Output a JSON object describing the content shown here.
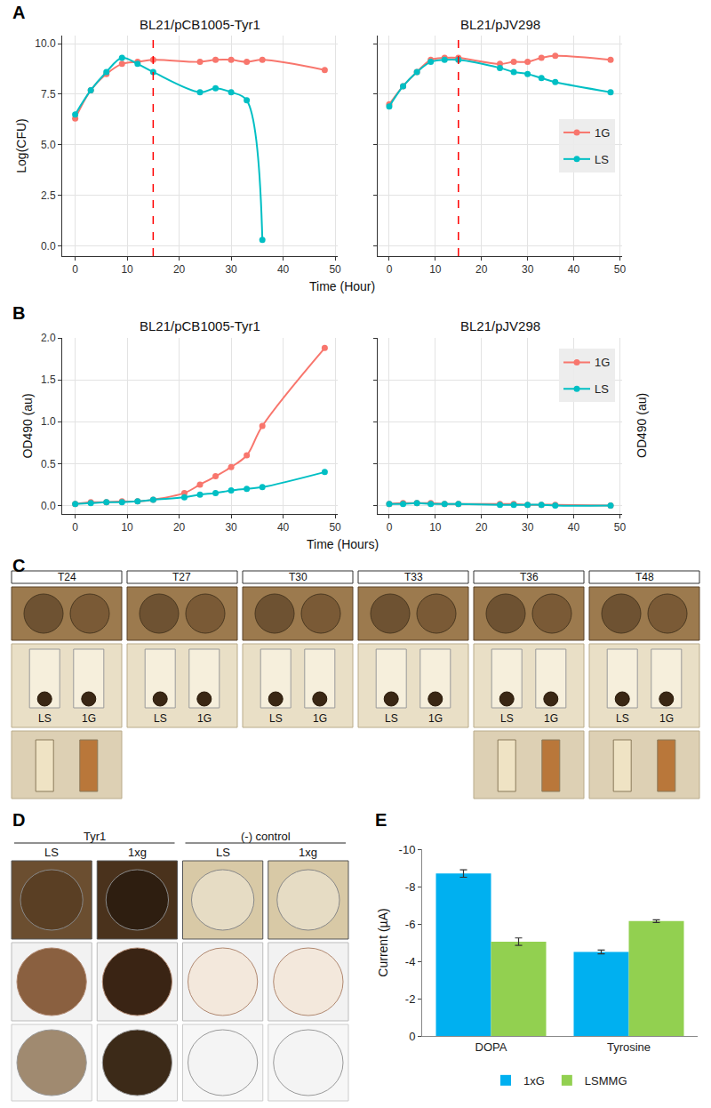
{
  "chart_data": [
    {
      "panel": "A",
      "type": "line",
      "xlabel": "Time (Hour)",
      "ylabel": "Log(CFU)",
      "xlim": [
        -2.5,
        50.5
      ],
      "xticks": [
        0,
        10,
        20,
        30,
        40,
        50
      ],
      "ylim": [
        -0.5,
        10.4
      ],
      "yticks": [
        {
          "value": 0,
          "label": "0.0"
        },
        2.5,
        {
          "value": 5,
          "label": "5.0"
        },
        7.5,
        {
          "value": 10,
          "label": "10.0"
        }
      ],
      "grid": true,
      "legend": "right",
      "marker": "circle",
      "subplots": [
        {
          "title": "BL21/pCB1005-Tyr1",
          "vline": 15,
          "series": [
            {
              "name": "1G",
              "color": "#F8766D",
              "x": [
                0,
                3,
                6,
                9,
                12,
                15,
                24,
                27,
                30,
                33,
                36,
                48
              ],
              "values": [
                6.3,
                7.7,
                8.5,
                9.0,
                9.1,
                9.2,
                9.1,
                9.2,
                9.2,
                9.1,
                9.2,
                8.7
              ]
            },
            {
              "name": "LS",
              "color": "#00BFC4",
              "x": [
                0,
                3,
                6,
                9,
                12,
                15,
                24,
                27,
                30,
                33,
                36
              ],
              "values": [
                6.5,
                7.7,
                8.6,
                9.3,
                9.0,
                8.6,
                7.6,
                7.8,
                7.6,
                7.2,
                0.3
              ]
            }
          ]
        },
        {
          "title": "BL21/pJV298",
          "vline": 15,
          "tick_labels": "x",
          "series": [
            {
              "name": "1G",
              "color": "#F8766D",
              "x": [
                0,
                3,
                6,
                9,
                12,
                15,
                24,
                27,
                30,
                33,
                36,
                48
              ],
              "values": [
                7.0,
                7.9,
                8.6,
                9.2,
                9.3,
                9.3,
                9.0,
                9.1,
                9.1,
                9.3,
                9.4,
                9.2
              ]
            },
            {
              "name": "LS",
              "color": "#00BFC4",
              "x": [
                0,
                3,
                6,
                9,
                12,
                15,
                24,
                27,
                30,
                33,
                36,
                48
              ],
              "values": [
                6.9,
                7.9,
                8.6,
                9.1,
                9.2,
                9.2,
                8.8,
                8.6,
                8.5,
                8.3,
                8.1,
                7.6
              ]
            }
          ]
        }
      ]
    },
    {
      "panel": "B",
      "type": "line",
      "xlabel": "Time (Hours)",
      "ylabel": "OD490 (au)",
      "xlim": [
        -2.5,
        50.5
      ],
      "xticks": [
        0,
        10,
        20,
        30,
        40,
        50
      ],
      "ylim": [
        -0.1,
        2.0
      ],
      "yticks": [
        {
          "value": 0,
          "label": "0.0"
        },
        0.5,
        {
          "value": 1,
          "label": "1.0"
        },
        1.5,
        {
          "value": 2,
          "label": "2.0"
        }
      ],
      "grid": true,
      "legend": "upper right",
      "marker": "circle",
      "subplots": [
        {
          "title": "BL21/pCB1005-Tyr1",
          "series": [
            {
              "name": "1G",
              "color": "#F8766D",
              "x": [
                0,
                3,
                6,
                9,
                12,
                15,
                21,
                24,
                27,
                30,
                33,
                36,
                48
              ],
              "values": [
                0.02,
                0.04,
                0.04,
                0.05,
                0.05,
                0.07,
                0.15,
                0.25,
                0.35,
                0.46,
                0.6,
                0.95,
                1.88
              ]
            },
            {
              "name": "LS",
              "color": "#00BFC4",
              "x": [
                0,
                3,
                6,
                9,
                12,
                15,
                21,
                24,
                27,
                30,
                33,
                36,
                48
              ],
              "values": [
                0.02,
                0.03,
                0.04,
                0.04,
                0.05,
                0.07,
                0.1,
                0.13,
                0.15,
                0.18,
                0.2,
                0.22,
                0.4
              ]
            }
          ]
        },
        {
          "title": "BL21/pJV298",
          "tick_labels": "x",
          "ylabel_right": "OD490 (au)",
          "series": [
            {
              "name": "1G",
              "color": "#F8766D",
              "x": [
                0,
                3,
                6,
                9,
                12,
                15,
                24,
                27,
                30,
                33,
                36,
                48
              ],
              "values": [
                0.02,
                0.03,
                0.03,
                0.03,
                0.02,
                0.02,
                0.02,
                0.02,
                0.01,
                0.01,
                0.01,
                0.0
              ]
            },
            {
              "name": "LS",
              "color": "#00BFC4",
              "x": [
                0,
                3,
                6,
                9,
                12,
                15,
                24,
                27,
                30,
                33,
                36,
                48
              ],
              "values": [
                0.02,
                0.02,
                0.03,
                0.02,
                0.02,
                0.02,
                0.01,
                0.01,
                0.01,
                0.01,
                0.0,
                0.0
              ]
            }
          ]
        }
      ]
    },
    {
      "panel": "E",
      "type": "bar",
      "categories": [
        "DOPA",
        "Tyrosine"
      ],
      "ylabel": "Current (µA)",
      "ylim": [
        0,
        -10
      ],
      "yticks": [
        0,
        -2,
        -4,
        -6,
        -8,
        -10
      ],
      "legend": "bottom",
      "series": [
        {
          "name": "1xG",
          "color": "#00B0F0",
          "values": [
            -8.7,
            -4.5
          ],
          "errors": [
            0.2,
            0.1
          ]
        },
        {
          "name": "LSMMG",
          "color": "#92D050",
          "values": [
            -5.05,
            -6.15
          ],
          "errors": [
            0.2,
            0.07
          ]
        }
      ]
    }
  ],
  "photo_panels": [
    {
      "letter": "C",
      "columns": [
        {
          "label": "T24",
          "tubes": [
            "LS",
            "1G"
          ],
          "photos": 3
        },
        {
          "label": "T27",
          "tubes": [
            "LS",
            "1G"
          ],
          "photos": 2
        },
        {
          "label": "T30",
          "tubes": [
            "LS",
            "1G"
          ],
          "photos": 2
        },
        {
          "label": "T33",
          "tubes": [
            "LS",
            "1G"
          ],
          "photos": 2
        },
        {
          "label": "T36",
          "tubes": [
            "LS",
            "1G"
          ],
          "photos": 3
        },
        {
          "label": "T48",
          "tubes": [
            "LS",
            "1G"
          ],
          "photos": 3
        }
      ]
    },
    {
      "letter": "D",
      "photos": 3,
      "groups": [
        {
          "label": "Tyr1",
          "items": [
            "LS",
            "1xg"
          ]
        },
        {
          "label": "(-) control",
          "items": [
            "LS",
            "1xg"
          ]
        }
      ]
    }
  ]
}
